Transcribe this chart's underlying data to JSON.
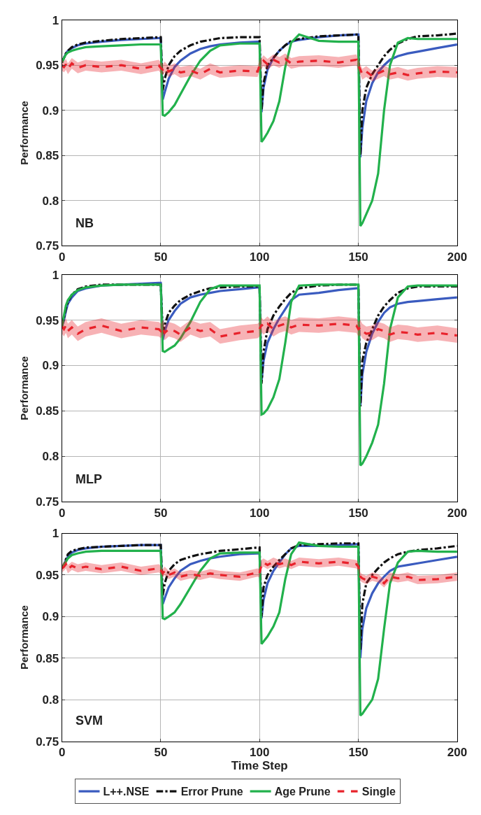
{
  "chart_data": [
    {
      "type": "line",
      "ylabel": "Performance",
      "annotations": [
        "NB"
      ],
      "xlim": [
        0,
        200
      ],
      "xticks": [
        0,
        50,
        100,
        150,
        200
      ],
      "ylim": [
        0.75,
        1
      ],
      "yticks": [
        0.75,
        0.8,
        0.85,
        0.9,
        0.95,
        1
      ],
      "grid": true,
      "legend": "bottom",
      "marker": "none",
      "x": [
        0,
        1,
        2,
        3,
        5,
        8,
        12,
        20,
        30,
        40,
        49,
        50,
        51,
        52,
        54,
        57,
        60,
        65,
        70,
        75,
        80,
        90,
        99,
        100,
        101,
        102,
        104,
        107,
        110,
        113,
        116,
        120,
        130,
        140,
        149,
        150,
        151,
        152,
        154,
        157,
        160,
        163,
        166,
        170,
        175,
        180,
        190,
        200
      ],
      "series": [
        {
          "name": "L++.NSE",
          "color": "#3a5bbf",
          "line_style": "solid",
          "values": [
            0.953,
            0.958,
            0.963,
            0.966,
            0.969,
            0.972,
            0.974,
            0.976,
            0.978,
            0.979,
            0.98,
            0.98,
            0.912,
            0.92,
            0.935,
            0.948,
            0.955,
            0.963,
            0.968,
            0.971,
            0.973,
            0.975,
            0.976,
            0.976,
            0.898,
            0.925,
            0.945,
            0.958,
            0.966,
            0.972,
            0.976,
            0.978,
            0.981,
            0.983,
            0.984,
            0.984,
            0.848,
            0.88,
            0.91,
            0.93,
            0.942,
            0.95,
            0.956,
            0.96,
            0.963,
            0.965,
            0.969,
            0.973
          ]
        },
        {
          "name": "Error Prune",
          "color": "#111111",
          "line_style": "dashdot",
          "values": [
            0.953,
            0.958,
            0.963,
            0.966,
            0.97,
            0.973,
            0.975,
            0.977,
            0.979,
            0.98,
            0.981,
            0.981,
            0.922,
            0.935,
            0.95,
            0.96,
            0.966,
            0.972,
            0.976,
            0.978,
            0.98,
            0.981,
            0.981,
            0.981,
            0.9,
            0.93,
            0.95,
            0.958,
            0.966,
            0.972,
            0.977,
            0.979,
            0.982,
            0.983,
            0.984,
            0.984,
            0.85,
            0.9,
            0.925,
            0.94,
            0.95,
            0.96,
            0.967,
            0.974,
            0.979,
            0.982,
            0.983,
            0.985
          ]
        },
        {
          "name": "Age Prune",
          "color": "#22b14c",
          "line_style": "solid",
          "values": [
            0.953,
            0.958,
            0.962,
            0.964,
            0.966,
            0.968,
            0.97,
            0.971,
            0.972,
            0.973,
            0.973,
            0.973,
            0.895,
            0.894,
            0.898,
            0.906,
            0.918,
            0.938,
            0.955,
            0.966,
            0.972,
            0.974,
            0.974,
            0.974,
            0.865,
            0.868,
            0.875,
            0.888,
            0.91,
            0.948,
            0.975,
            0.984,
            0.977,
            0.976,
            0.976,
            0.976,
            0.772,
            0.775,
            0.785,
            0.8,
            0.83,
            0.9,
            0.95,
            0.975,
            0.98,
            0.979,
            0.979,
            0.979
          ]
        },
        {
          "name": "Single",
          "color": "#e8222b",
          "line_style": "dashed",
          "values": [
            0.95,
            0.948,
            0.951,
            0.946,
            0.952,
            0.947,
            0.95,
            0.948,
            0.95,
            0.946,
            0.95,
            0.947,
            0.945,
            0.948,
            0.943,
            0.946,
            0.942,
            0.944,
            0.94,
            0.946,
            0.942,
            0.944,
            0.943,
            0.95,
            0.952,
            0.955,
            0.951,
            0.956,
            0.953,
            0.957,
            0.952,
            0.954,
            0.955,
            0.953,
            0.956,
            0.95,
            0.945,
            0.94,
            0.943,
            0.938,
            0.941,
            0.944,
            0.94,
            0.942,
            0.939,
            0.941,
            0.943,
            0.942
          ],
          "lower": [
            0.944,
            0.942,
            0.945,
            0.94,
            0.946,
            0.941,
            0.944,
            0.942,
            0.944,
            0.94,
            0.944,
            0.941,
            0.939,
            0.942,
            0.937,
            0.94,
            0.936,
            0.938,
            0.934,
            0.94,
            0.936,
            0.938,
            0.937,
            0.944,
            0.946,
            0.949,
            0.945,
            0.95,
            0.947,
            0.951,
            0.946,
            0.948,
            0.949,
            0.947,
            0.95,
            0.944,
            0.939,
            0.934,
            0.937,
            0.932,
            0.935,
            0.938,
            0.934,
            0.936,
            0.933,
            0.935,
            0.937,
            0.936
          ],
          "upper": [
            0.956,
            0.954,
            0.957,
            0.952,
            0.958,
            0.953,
            0.956,
            0.954,
            0.956,
            0.952,
            0.956,
            0.953,
            0.951,
            0.954,
            0.949,
            0.952,
            0.948,
            0.95,
            0.946,
            0.952,
            0.948,
            0.95,
            0.949,
            0.956,
            0.958,
            0.961,
            0.957,
            0.962,
            0.959,
            0.963,
            0.958,
            0.96,
            0.961,
            0.959,
            0.962,
            0.956,
            0.951,
            0.946,
            0.949,
            0.944,
            0.947,
            0.95,
            0.946,
            0.948,
            0.945,
            0.947,
            0.949,
            0.948
          ]
        }
      ]
    },
    {
      "type": "line",
      "ylabel": "Performance",
      "annotations": [
        "MLP"
      ],
      "xlim": [
        0,
        200
      ],
      "xticks": [
        0,
        50,
        100,
        150,
        200
      ],
      "ylim": [
        0.75,
        1
      ],
      "yticks": [
        0.75,
        0.8,
        0.85,
        0.9,
        0.95,
        1
      ],
      "grid": true,
      "marker": "none",
      "x": [
        0,
        1,
        2,
        3,
        5,
        8,
        12,
        20,
        30,
        40,
        49,
        50,
        51,
        52,
        54,
        57,
        60,
        65,
        70,
        75,
        80,
        90,
        99,
        100,
        101,
        102,
        104,
        107,
        110,
        113,
        116,
        120,
        130,
        140,
        149,
        150,
        151,
        152,
        154,
        157,
        160,
        163,
        166,
        170,
        175,
        180,
        190,
        200
      ],
      "series": [
        {
          "color": "#3a5bbf",
          "line_style": "solid",
          "values": [
            0.943,
            0.95,
            0.96,
            0.968,
            0.975,
            0.982,
            0.985,
            0.988,
            0.989,
            0.99,
            0.991,
            0.991,
            0.928,
            0.938,
            0.95,
            0.96,
            0.968,
            0.975,
            0.978,
            0.98,
            0.982,
            0.984,
            0.986,
            0.986,
            0.882,
            0.905,
            0.925,
            0.94,
            0.952,
            0.962,
            0.972,
            0.978,
            0.98,
            0.983,
            0.985,
            0.985,
            0.855,
            0.89,
            0.915,
            0.935,
            0.948,
            0.958,
            0.964,
            0.968,
            0.97,
            0.971,
            0.973,
            0.975
          ]
        },
        {
          "color": "#111111",
          "line_style": "dashdot",
          "values": [
            0.943,
            0.952,
            0.963,
            0.97,
            0.978,
            0.984,
            0.987,
            0.989,
            0.989,
            0.989,
            0.989,
            0.989,
            0.935,
            0.945,
            0.958,
            0.966,
            0.972,
            0.978,
            0.982,
            0.985,
            0.986,
            0.987,
            0.987,
            0.987,
            0.88,
            0.915,
            0.94,
            0.955,
            0.965,
            0.973,
            0.98,
            0.985,
            0.988,
            0.989,
            0.989,
            0.989,
            0.855,
            0.905,
            0.925,
            0.94,
            0.955,
            0.965,
            0.972,
            0.98,
            0.985,
            0.987,
            0.987,
            0.987
          ]
        },
        {
          "color": "#22b14c",
          "line_style": "solid",
          "values": [
            0.943,
            0.955,
            0.966,
            0.972,
            0.978,
            0.983,
            0.986,
            0.988,
            0.989,
            0.989,
            0.989,
            0.989,
            0.916,
            0.915,
            0.918,
            0.922,
            0.93,
            0.948,
            0.97,
            0.984,
            0.988,
            0.988,
            0.988,
            0.988,
            0.846,
            0.847,
            0.852,
            0.865,
            0.885,
            0.925,
            0.97,
            0.988,
            0.989,
            0.989,
            0.989,
            0.989,
            0.79,
            0.792,
            0.8,
            0.815,
            0.835,
            0.88,
            0.94,
            0.975,
            0.987,
            0.988,
            0.988,
            0.988
          ]
        },
        {
          "color": "#e8222b",
          "line_style": "dashed",
          "values": [
            0.943,
            0.94,
            0.944,
            0.938,
            0.942,
            0.935,
            0.94,
            0.944,
            0.938,
            0.942,
            0.94,
            0.938,
            0.942,
            0.936,
            0.94,
            0.938,
            0.934,
            0.942,
            0.938,
            0.94,
            0.932,
            0.936,
            0.938,
            0.94,
            0.945,
            0.942,
            0.946,
            0.94,
            0.944,
            0.946,
            0.942,
            0.945,
            0.944,
            0.946,
            0.944,
            0.94,
            0.942,
            0.938,
            0.935,
            0.936,
            0.94,
            0.938,
            0.934,
            0.937,
            0.936,
            0.934,
            0.936,
            0.933
          ],
          "lower": [
            0.935,
            0.932,
            0.936,
            0.93,
            0.934,
            0.927,
            0.932,
            0.936,
            0.93,
            0.934,
            0.932,
            0.93,
            0.934,
            0.928,
            0.932,
            0.93,
            0.926,
            0.934,
            0.93,
            0.932,
            0.924,
            0.928,
            0.93,
            0.932,
            0.937,
            0.934,
            0.938,
            0.932,
            0.936,
            0.938,
            0.934,
            0.937,
            0.936,
            0.938,
            0.936,
            0.932,
            0.934,
            0.93,
            0.927,
            0.928,
            0.932,
            0.93,
            0.926,
            0.929,
            0.928,
            0.926,
            0.928,
            0.925
          ],
          "upper": [
            0.951,
            0.948,
            0.952,
            0.946,
            0.95,
            0.943,
            0.948,
            0.952,
            0.946,
            0.95,
            0.948,
            0.946,
            0.95,
            0.944,
            0.948,
            0.946,
            0.942,
            0.95,
            0.946,
            0.948,
            0.94,
            0.944,
            0.946,
            0.948,
            0.953,
            0.95,
            0.954,
            0.948,
            0.952,
            0.954,
            0.95,
            0.953,
            0.952,
            0.954,
            0.952,
            0.948,
            0.95,
            0.946,
            0.943,
            0.944,
            0.948,
            0.946,
            0.942,
            0.945,
            0.944,
            0.942,
            0.944,
            0.941
          ]
        }
      ]
    },
    {
      "type": "line",
      "xlabel": "Time Step",
      "ylabel": "Performance",
      "annotations": [
        "SVM"
      ],
      "xlim": [
        0,
        200
      ],
      "xticks": [
        0,
        50,
        100,
        150,
        200
      ],
      "ylim": [
        0.75,
        1
      ],
      "yticks": [
        0.75,
        0.8,
        0.85,
        0.9,
        0.95,
        1
      ],
      "grid": true,
      "marker": "none",
      "x": [
        0,
        1,
        2,
        3,
        5,
        8,
        12,
        20,
        30,
        40,
        49,
        50,
        51,
        52,
        54,
        57,
        60,
        65,
        70,
        75,
        80,
        90,
        99,
        100,
        101,
        102,
        104,
        107,
        110,
        113,
        116,
        120,
        130,
        140,
        149,
        150,
        151,
        152,
        154,
        157,
        160,
        163,
        166,
        170,
        175,
        180,
        190,
        200
      ],
      "series": [
        {
          "color": "#3a5bbf",
          "line_style": "solid",
          "values": [
            0.958,
            0.962,
            0.968,
            0.972,
            0.977,
            0.98,
            0.982,
            0.984,
            0.985,
            0.986,
            0.986,
            0.986,
            0.915,
            0.922,
            0.935,
            0.946,
            0.955,
            0.963,
            0.967,
            0.97,
            0.972,
            0.975,
            0.976,
            0.976,
            0.898,
            0.92,
            0.94,
            0.955,
            0.965,
            0.975,
            0.982,
            0.985,
            0.985,
            0.986,
            0.987,
            0.987,
            0.85,
            0.885,
            0.91,
            0.928,
            0.94,
            0.948,
            0.955,
            0.96,
            0.962,
            0.964,
            0.968,
            0.972
          ]
        },
        {
          "color": "#111111",
          "line_style": "dashdot",
          "values": [
            0.958,
            0.962,
            0.969,
            0.975,
            0.979,
            0.981,
            0.983,
            0.984,
            0.985,
            0.986,
            0.986,
            0.986,
            0.925,
            0.94,
            0.955,
            0.963,
            0.968,
            0.972,
            0.975,
            0.977,
            0.979,
            0.981,
            0.983,
            0.983,
            0.9,
            0.935,
            0.95,
            0.96,
            0.968,
            0.975,
            0.982,
            0.986,
            0.987,
            0.988,
            0.988,
            0.988,
            0.86,
            0.915,
            0.94,
            0.95,
            0.958,
            0.965,
            0.97,
            0.975,
            0.978,
            0.98,
            0.982,
            0.985
          ]
        },
        {
          "color": "#22b14c",
          "line_style": "solid",
          "values": [
            0.958,
            0.962,
            0.966,
            0.97,
            0.974,
            0.976,
            0.978,
            0.979,
            0.979,
            0.979,
            0.979,
            0.979,
            0.898,
            0.897,
            0.9,
            0.905,
            0.915,
            0.935,
            0.955,
            0.97,
            0.976,
            0.977,
            0.977,
            0.977,
            0.867,
            0.87,
            0.876,
            0.888,
            0.905,
            0.945,
            0.975,
            0.989,
            0.985,
            0.984,
            0.984,
            0.984,
            0.781,
            0.783,
            0.79,
            0.8,
            0.825,
            0.885,
            0.94,
            0.965,
            0.978,
            0.979,
            0.978,
            0.978
          ]
        },
        {
          "color": "#e8222b",
          "line_style": "dashed",
          "values": [
            0.958,
            0.96,
            0.963,
            0.957,
            0.961,
            0.958,
            0.96,
            0.957,
            0.96,
            0.955,
            0.958,
            0.956,
            0.952,
            0.955,
            0.95,
            0.953,
            0.948,
            0.951,
            0.949,
            0.952,
            0.95,
            0.948,
            0.953,
            0.952,
            0.963,
            0.965,
            0.962,
            0.966,
            0.963,
            0.965,
            0.962,
            0.966,
            0.964,
            0.966,
            0.963,
            0.96,
            0.948,
            0.946,
            0.944,
            0.948,
            0.946,
            0.94,
            0.948,
            0.946,
            0.948,
            0.944,
            0.945,
            0.948
          ],
          "lower": [
            0.953,
            0.955,
            0.958,
            0.952,
            0.956,
            0.953,
            0.955,
            0.952,
            0.955,
            0.95,
            0.953,
            0.951,
            0.947,
            0.95,
            0.945,
            0.948,
            0.943,
            0.946,
            0.944,
            0.947,
            0.945,
            0.943,
            0.948,
            0.947,
            0.958,
            0.96,
            0.957,
            0.961,
            0.958,
            0.96,
            0.957,
            0.961,
            0.959,
            0.961,
            0.958,
            0.955,
            0.943,
            0.941,
            0.939,
            0.943,
            0.941,
            0.935,
            0.943,
            0.941,
            0.943,
            0.939,
            0.94,
            0.943
          ],
          "upper": [
            0.963,
            0.965,
            0.968,
            0.962,
            0.966,
            0.963,
            0.965,
            0.962,
            0.965,
            0.96,
            0.963,
            0.961,
            0.957,
            0.96,
            0.955,
            0.958,
            0.953,
            0.956,
            0.954,
            0.957,
            0.955,
            0.953,
            0.958,
            0.957,
            0.968,
            0.97,
            0.967,
            0.971,
            0.968,
            0.97,
            0.967,
            0.971,
            0.969,
            0.971,
            0.968,
            0.965,
            0.953,
            0.951,
            0.949,
            0.953,
            0.951,
            0.945,
            0.953,
            0.951,
            0.953,
            0.949,
            0.95,
            0.953
          ]
        }
      ]
    }
  ]
}
